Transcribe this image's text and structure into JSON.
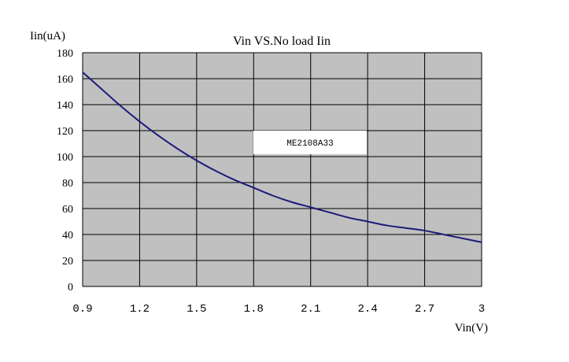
{
  "chart_data": {
    "type": "line",
    "title": "Vin VS.No load Iin",
    "xlabel": "Vin(V)",
    "ylabel": "Iin(uA)",
    "xlim": [
      0.9,
      3.0
    ],
    "ylim": [
      0,
      180
    ],
    "x_ticks": [
      "0.9",
      "1.2",
      "1.5",
      "1.8",
      "2.1",
      "2.4",
      "2.7",
      "3"
    ],
    "y_ticks": [
      "0",
      "20",
      "40",
      "60",
      "80",
      "100",
      "120",
      "140",
      "160",
      "180"
    ],
    "grid": true,
    "legend": "ME2108A33",
    "legend_placement": "center",
    "colors": {
      "plot_background": "#c0c0c0",
      "line": "#1c1c7a",
      "grid": "#000000",
      "legend_box": "#ffffff"
    },
    "series": [
      {
        "name": "ME2108A33",
        "x": [
          0.9,
          1.0,
          1.1,
          1.2,
          1.3,
          1.4,
          1.5,
          1.6,
          1.7,
          1.8,
          1.9,
          2.0,
          2.1,
          2.2,
          2.3,
          2.4,
          2.5,
          2.6,
          2.7,
          2.8,
          2.9,
          3.0
        ],
        "y": [
          165,
          152,
          139,
          127,
          116,
          106,
          97,
          89,
          82,
          76,
          70,
          65,
          61,
          57,
          53,
          50,
          47,
          45,
          43,
          40,
          37,
          34
        ]
      }
    ]
  }
}
